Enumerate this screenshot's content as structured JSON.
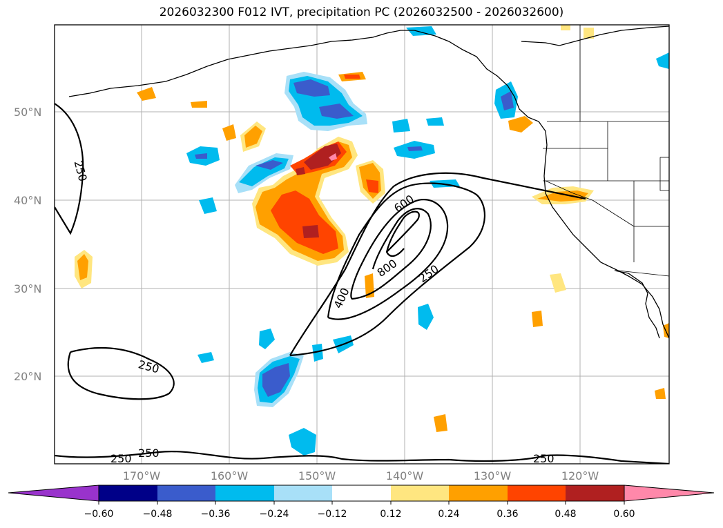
{
  "title": "2026032300 F012 IVT, precipitation PC (2026032500 - 2026032600)",
  "lat_labels": [
    "50°N",
    "40°N",
    "30°N",
    "20°N"
  ],
  "lon_labels": [
    "170°W",
    "160°W",
    "150°W",
    "140°W",
    "130°W",
    "120°W"
  ],
  "contour_labels": [
    "250",
    "600",
    "250",
    "800",
    "400",
    "250",
    "250",
    "250",
    "250"
  ],
  "colorbar": {
    "ticks": [
      "−0.60",
      "−0.48",
      "−0.36",
      "−0.24",
      "−0.12",
      "0.12",
      "0.24",
      "0.36",
      "0.48",
      "0.60"
    ],
    "colors": [
      "#9933cc",
      "#000088",
      "#3a5ccc",
      "#00bbee",
      "#a8e0f8",
      "#ffffff",
      "#ffe680",
      "#ffa000",
      "#ff4400",
      "#b02020",
      "#ff88aa"
    ]
  }
}
